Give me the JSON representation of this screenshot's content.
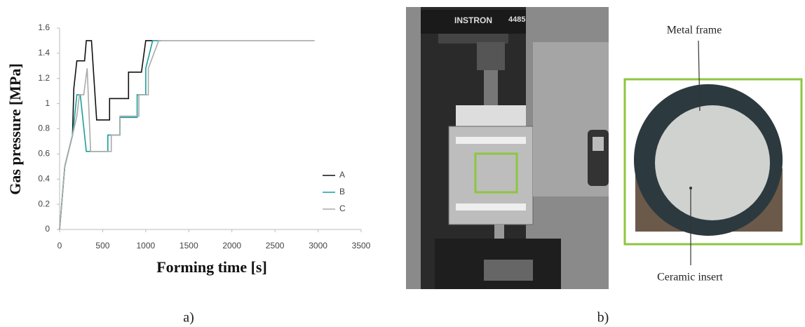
{
  "chart_data": {
    "type": "line",
    "xlabel": "Forming time [s]",
    "ylabel": "Gas pressure [MPa]",
    "xlim": [
      0,
      3500
    ],
    "xticks": [
      0,
      500,
      1000,
      1500,
      2000,
      2500,
      3000,
      3500
    ],
    "ylim": [
      0,
      1.6
    ],
    "yticks": [
      0,
      0.2,
      0.4,
      0.6,
      0.8,
      1,
      1.2,
      1.4,
      1.6
    ],
    "grid": false,
    "legend": "right",
    "series": [
      {
        "name": "A",
        "color": "#111111",
        "x": [
          0,
          60,
          150,
          165,
          200,
          290,
          310,
          370,
          430,
          580,
          580,
          800,
          800,
          950,
          1000,
          1080
        ],
        "values": [
          0,
          0.5,
          0.75,
          1.12,
          1.34,
          1.34,
          1.5,
          1.5,
          0.87,
          0.87,
          1.04,
          1.04,
          1.25,
          1.25,
          1.5,
          1.5
        ]
      },
      {
        "name": "B",
        "color": "#1a9e9a",
        "x": [
          0,
          60,
          150,
          175,
          200,
          240,
          310,
          560,
          560,
          700,
          700,
          900,
          900,
          1000,
          1000,
          1080,
          1180
        ],
        "values": [
          0,
          0.5,
          0.75,
          0.9,
          1.07,
          1.07,
          0.62,
          0.62,
          0.75,
          0.75,
          0.89,
          0.89,
          1.07,
          1.07,
          1.28,
          1.5,
          1.5
        ]
      },
      {
        "name": "C",
        "color": "#aaaaaa",
        "x": [
          0,
          60,
          150,
          200,
          230,
          280,
          320,
          360,
          600,
          600,
          700,
          700,
          920,
          920,
          1030,
          1030,
          1150,
          2960
        ],
        "values": [
          0,
          0.5,
          0.75,
          0.9,
          1.07,
          1.07,
          1.28,
          0.62,
          0.62,
          0.75,
          0.75,
          0.9,
          0.9,
          1.07,
          1.07,
          1.28,
          1.5,
          1.5
        ]
      }
    ]
  },
  "panel_labels": [
    "a)",
    "b)"
  ],
  "machine_labels": [
    "INSTRON",
    "4485"
  ],
  "annotations": [
    "Metal frame",
    "Ceramic insert"
  ]
}
